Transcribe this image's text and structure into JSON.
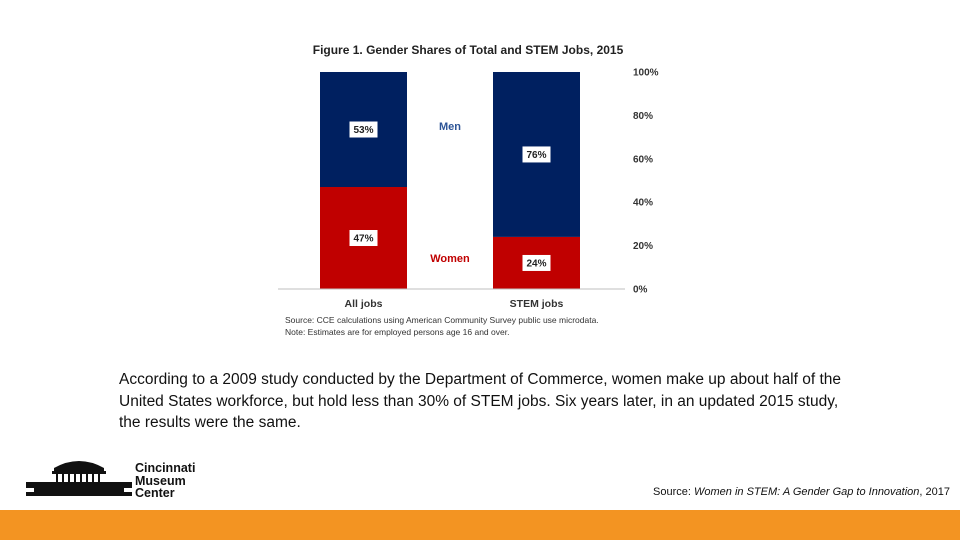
{
  "chart_data": {
    "type": "bar",
    "stacked": true,
    "title": "Figure 1. Gender Shares of Total and STEM Jobs, 2015",
    "categories": [
      "All jobs",
      "STEM jobs"
    ],
    "series": [
      {
        "name": "Women",
        "values": [
          47,
          24
        ],
        "labels": [
          "47%",
          "24%"
        ],
        "color": "#c00000"
      },
      {
        "name": "Men",
        "values": [
          53,
          76
        ],
        "labels": [
          "53%",
          "76%"
        ],
        "color": "#002060"
      }
    ],
    "ylim": [
      0,
      100
    ],
    "yticks": [
      "0%",
      "20%",
      "40%",
      "60%",
      "80%",
      "100%"
    ],
    "yaxis_side": "right",
    "grid": false,
    "legend": "inline labels between bars",
    "notes": [
      "Source: CCE calculations using American Community Survey public use microdata.",
      "Note: Estimates are for employed persons age 16 and over."
    ]
  },
  "body": {
    "paragraph": "According to a 2009 study conducted by the Department of Commerce, women make up about half of the United States workforce, but hold less than 30% of STEM jobs. Six years later, in an updated 2015 study, the results were the same."
  },
  "logo": {
    "line1": "Cincinnati",
    "line2": "Museum",
    "line3": "Center"
  },
  "source": {
    "prefix": "Source: ",
    "title": "Women in STEM: A Gender Gap to Innovation",
    "suffix": ", 2017"
  },
  "colors": {
    "women": "#c00000",
    "men": "#002060",
    "footer": "#f39422"
  }
}
